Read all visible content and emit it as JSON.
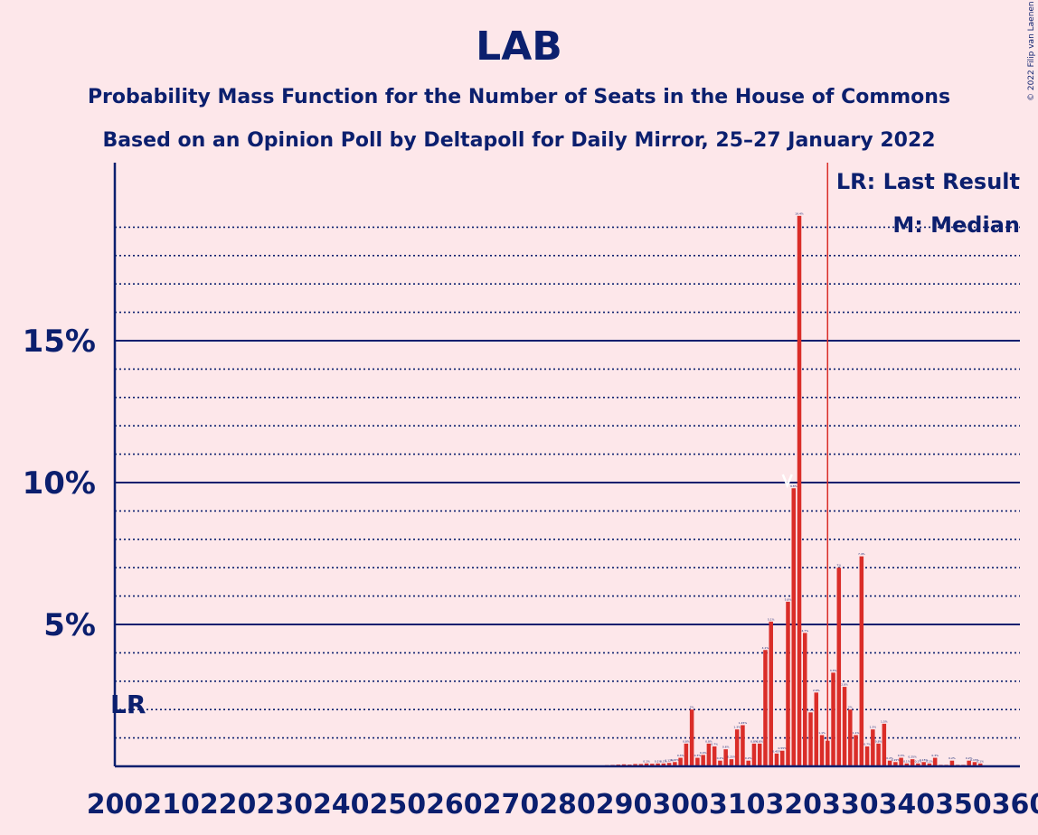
{
  "chart_data": {
    "type": "bar",
    "title": "LAB",
    "subtitle": "Probability Mass Function for the Number of Seats in the House of Commons",
    "subtitle2": "Based on an Opinion Poll by Deltapoll for Daily Mirror, 25–27 January 2022",
    "copyright": "© 2022 Filip van Laenen",
    "legend": {
      "last_result": "LR: Last Result",
      "median": "M: Median",
      "placement": "top-right"
    },
    "lr_label": "LR",
    "xlabel": "",
    "ylabel": "",
    "xlim": [
      200,
      360
    ],
    "ylim": [
      0,
      21
    ],
    "y_ticks": [
      {
        "value": 5,
        "label": "5%"
      },
      {
        "value": 10,
        "label": "10%"
      },
      {
        "value": 15,
        "label": "15%"
      }
    ],
    "x_ticks": [
      200,
      210,
      220,
      230,
      240,
      250,
      260,
      270,
      280,
      290,
      300,
      310,
      320,
      330,
      340,
      350,
      360
    ],
    "x_tick_labels": [
      "200",
      "210",
      "220",
      "230",
      "240",
      "250",
      "260",
      "270",
      "280",
      "290",
      "300",
      "310",
      "320",
      "330",
      "340",
      "350",
      "360"
    ],
    "last_result": 202,
    "median": 318,
    "majority_line": 326,
    "series": [
      {
        "color": "#DA2D28",
        "points": [
          [
            284,
            0.02
          ],
          [
            285,
            0.03
          ],
          [
            286,
            0.03
          ],
          [
            287,
            0.04
          ],
          [
            288,
            0.05
          ],
          [
            289,
            0.06
          ],
          [
            290,
            0.07
          ],
          [
            291,
            0.06
          ],
          [
            292,
            0.08
          ],
          [
            293,
            0.08
          ],
          [
            294,
            0.1
          ],
          [
            295,
            0.09
          ],
          [
            296,
            0.1
          ],
          [
            297,
            0.1
          ],
          [
            298,
            0.12
          ],
          [
            299,
            0.15
          ],
          [
            300,
            0.3
          ],
          [
            301,
            0.8
          ],
          [
            302,
            2.0
          ],
          [
            303,
            0.3
          ],
          [
            304,
            0.4
          ],
          [
            305,
            0.8
          ],
          [
            306,
            0.7
          ],
          [
            307,
            0.2
          ],
          [
            308,
            0.6
          ],
          [
            309,
            0.25
          ],
          [
            310,
            1.3
          ],
          [
            311,
            1.45
          ],
          [
            312,
            0.2
          ],
          [
            313,
            0.8
          ],
          [
            314,
            0.8
          ],
          [
            315,
            4.1
          ],
          [
            316,
            5.1
          ],
          [
            317,
            0.45
          ],
          [
            318,
            0.55
          ],
          [
            319,
            5.8
          ],
          [
            320,
            9.8
          ],
          [
            321,
            19.4
          ],
          [
            322,
            4.7
          ],
          [
            323,
            1.9
          ],
          [
            324,
            2.6
          ],
          [
            325,
            1.1
          ],
          [
            326,
            0.9
          ],
          [
            327,
            3.3
          ],
          [
            328,
            7.0
          ],
          [
            329,
            2.8
          ],
          [
            330,
            2.0
          ],
          [
            331,
            1.1
          ],
          [
            332,
            7.4
          ],
          [
            333,
            0.7
          ],
          [
            334,
            1.3
          ],
          [
            335,
            0.8
          ],
          [
            336,
            1.5
          ],
          [
            337,
            0.2
          ],
          [
            338,
            0.15
          ],
          [
            339,
            0.3
          ],
          [
            340,
            0.1
          ],
          [
            341,
            0.25
          ],
          [
            342,
            0.1
          ],
          [
            343,
            0.15
          ],
          [
            344,
            0.1
          ],
          [
            345,
            0.3
          ],
          [
            346,
            0.05
          ],
          [
            347,
            0.05
          ],
          [
            348,
            0.2
          ],
          [
            349,
            0.05
          ],
          [
            350,
            0.05
          ],
          [
            351,
            0.2
          ],
          [
            352,
            0.15
          ],
          [
            353,
            0.1
          ],
          [
            354,
            0.03
          ],
          [
            355,
            0.02
          ],
          [
            356,
            0.02
          ],
          [
            357,
            0.02
          ],
          [
            358,
            0.02
          ],
          [
            359,
            0.01
          ]
        ]
      }
    ]
  }
}
